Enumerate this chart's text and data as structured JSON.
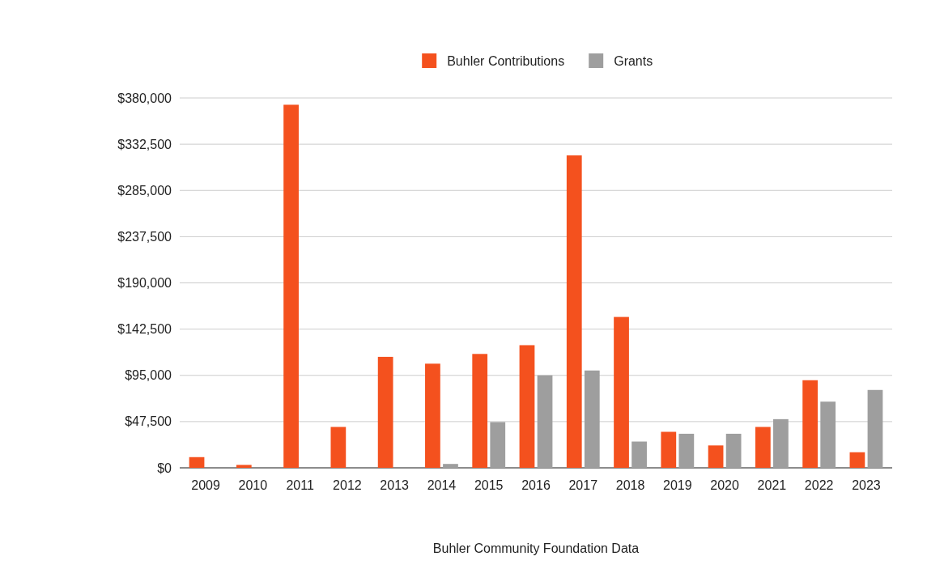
{
  "chart_data": {
    "type": "bar",
    "xlabel": "Buhler Community Foundation Data",
    "categories": [
      "2009",
      "2010",
      "2011",
      "2012",
      "2013",
      "2014",
      "2015",
      "2016",
      "2017",
      "2018",
      "2019",
      "2020",
      "2021",
      "2022",
      "2023"
    ],
    "series": [
      {
        "name": "Buhler Contributions",
        "color": "#f4511e",
        "values": [
          11000,
          3000,
          373000,
          42000,
          114000,
          107000,
          117000,
          126000,
          321000,
          155000,
          37000,
          23000,
          42000,
          90000,
          16000
        ]
      },
      {
        "name": "Grants",
        "color": "#9e9e9e",
        "values": [
          0,
          0,
          0,
          0,
          0,
          4000,
          47000,
          95000,
          100000,
          27000,
          35000,
          35000,
          50000,
          68000,
          80000
        ]
      }
    ],
    "ylim": [
      0,
      380000
    ],
    "yticks": [
      {
        "value": 0,
        "label": "$0"
      },
      {
        "value": 47500,
        "label": "$47,500"
      },
      {
        "value": 95000,
        "label": "$95,000"
      },
      {
        "value": 142500,
        "label": "$142,500"
      },
      {
        "value": 190000,
        "label": "$190,000"
      },
      {
        "value": 237500,
        "label": "$237,500"
      },
      {
        "value": 285000,
        "label": "$285,000"
      },
      {
        "value": 332500,
        "label": "$332,500"
      },
      {
        "value": 380000,
        "label": "$380,000"
      }
    ],
    "grid": "y",
    "legend": "top"
  }
}
